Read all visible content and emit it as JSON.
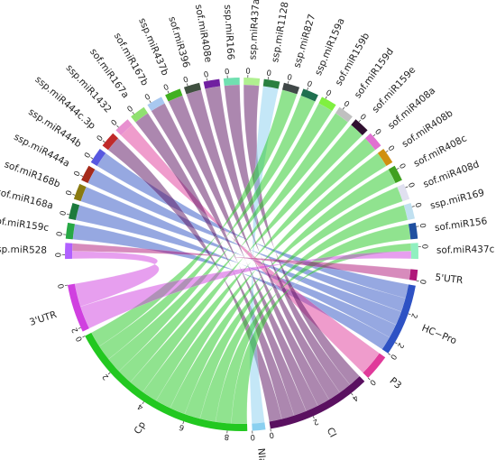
{
  "chart_data": {
    "type": "chord",
    "top_segments": [
      {
        "name": "ssp.miR528",
        "value": 0.5,
        "color": "#b060ff"
      },
      {
        "name": "sof.miR159c",
        "value": 0.5,
        "color": "#27a844"
      },
      {
        "name": "sof.miR168a",
        "value": 0.5,
        "color": "#1c7a3c"
      },
      {
        "name": "sof.miR168b",
        "value": 0.5,
        "color": "#8a7a10"
      },
      {
        "name": "ssp.miR444a",
        "value": 0.5,
        "color": "#a52a1a"
      },
      {
        "name": "ssp.miR444b",
        "value": 0.5,
        "color": "#5858e0"
      },
      {
        "name": "ssp.miR444c.3p",
        "value": 0.5,
        "color": "#c02a2a"
      },
      {
        "name": "ssp.miR1432",
        "value": 0.5,
        "color": "#e890d0"
      },
      {
        "name": "sof.miR167a",
        "value": 0.5,
        "color": "#90e070"
      },
      {
        "name": "sof.miR167b",
        "value": 0.5,
        "color": "#a8c8f0"
      },
      {
        "name": "ssp.miR437b",
        "value": 0.5,
        "color": "#40b020"
      },
      {
        "name": "sof.miR396",
        "value": 0.5,
        "color": "#405040"
      },
      {
        "name": "sof.miR408e",
        "value": 0.5,
        "color": "#7020a0"
      },
      {
        "name": "ssp.miR166",
        "value": 0.5,
        "color": "#70e0b0"
      },
      {
        "name": "ssp.miR437a",
        "value": 0.5,
        "color": "#b0f090"
      },
      {
        "name": "ssp.miR1128",
        "value": 0.5,
        "color": "#2a8040"
      },
      {
        "name": "ssp.miR827",
        "value": 0.5,
        "color": "#404848"
      },
      {
        "name": "ssp.miR159a",
        "value": 0.5,
        "color": "#207050"
      },
      {
        "name": "sof.miR159b",
        "value": 0.5,
        "color": "#80f040"
      },
      {
        "name": "sof.miR159d",
        "value": 0.5,
        "color": "#c0c0c0"
      },
      {
        "name": "sof.miR159e",
        "value": 0.5,
        "color": "#301030"
      },
      {
        "name": "sof.miR408a",
        "value": 0.5,
        "color": "#e070d0"
      },
      {
        "name": "sof.miR408b",
        "value": 0.5,
        "color": "#d09010"
      },
      {
        "name": "sof.miR408c",
        "value": 0.5,
        "color": "#40a020"
      },
      {
        "name": "sof.miR408d",
        "value": 0.5,
        "color": "#e0e0f0"
      },
      {
        "name": "ssp.miR169",
        "value": 0.5,
        "color": "#c0e0f0"
      },
      {
        "name": "sof.miR156",
        "value": 0.5,
        "color": "#2050a0"
      },
      {
        "name": "sof.miR437c",
        "value": 0.5,
        "color": "#90f0c0"
      }
    ],
    "bottom_segments": [
      {
        "name": "5'UTR",
        "value": 0.5,
        "color": "#b0187a",
        "ticks": [
          0
        ]
      },
      {
        "name": "HC−Pro",
        "value": 3.3,
        "color": "#2e52c4",
        "ticks": [
          0,
          2
        ]
      },
      {
        "name": "P3",
        "value": 1.2,
        "color": "#e03a9a",
        "ticks": [
          0,
          2
        ]
      },
      {
        "name": "CI",
        "value": 4.8,
        "color": "#5a1060",
        "ticks": [
          0,
          2,
          4
        ]
      },
      {
        "name": "NIa",
        "value": 0.6,
        "color": "#8ad0f0",
        "ticks": [
          0
        ]
      },
      {
        "name": "Cp",
        "value": 8.9,
        "color": "#22c820",
        "ticks": [
          0,
          2,
          4,
          6,
          8
        ]
      },
      {
        "name": "3'UTR",
        "value": 2.2,
        "color": "#d040e0",
        "ticks": [
          0,
          2
        ]
      }
    ],
    "links": [
      {
        "source": "ssp.miR528",
        "target": "3'UTR"
      },
      {
        "source": "sof.miR159c",
        "target": "HC−Pro"
      },
      {
        "source": "sof.miR168a",
        "target": "HC−Pro"
      },
      {
        "source": "sof.miR168b",
        "target": "HC−Pro"
      },
      {
        "source": "ssp.miR444a",
        "target": "HC−Pro"
      },
      {
        "source": "ssp.miR444b",
        "target": "HC−Pro"
      },
      {
        "source": "ssp.miR444c.3p",
        "target": "CI"
      },
      {
        "source": "ssp.miR1432",
        "target": "P3"
      },
      {
        "source": "sof.miR167a",
        "target": "CI"
      },
      {
        "source": "sof.miR167b",
        "target": "CI"
      },
      {
        "source": "ssp.miR437b",
        "target": "CI"
      },
      {
        "source": "sof.miR396",
        "target": "CI"
      },
      {
        "source": "sof.miR408e",
        "target": "CI"
      },
      {
        "source": "ssp.miR166",
        "target": "CI"
      },
      {
        "source": "ssp.miR437a",
        "target": "CI"
      },
      {
        "source": "ssp.miR1128",
        "target": "NIa"
      },
      {
        "source": "ssp.miR827",
        "target": "Cp"
      },
      {
        "source": "ssp.miR159a",
        "target": "Cp"
      },
      {
        "source": "sof.miR159b",
        "target": "Cp"
      },
      {
        "source": "sof.miR159d",
        "target": "Cp"
      },
      {
        "source": "sof.miR159e",
        "target": "Cp"
      },
      {
        "source": "sof.miR408a",
        "target": "Cp"
      },
      {
        "source": "sof.miR408b",
        "target": "Cp"
      },
      {
        "source": "sof.miR408c",
        "target": "Cp"
      },
      {
        "source": "sof.miR408d",
        "target": "Cp"
      },
      {
        "source": "ssp.miR169",
        "target": "Cp"
      },
      {
        "source": "sof.miR156",
        "target": "Cp"
      },
      {
        "source": "sof.miR437c",
        "target": "Cp"
      },
      {
        "source": "ssp.miR528",
        "target": "5'UTR"
      },
      {
        "source": "sof.miR437c",
        "target": "3'UTR"
      }
    ]
  }
}
